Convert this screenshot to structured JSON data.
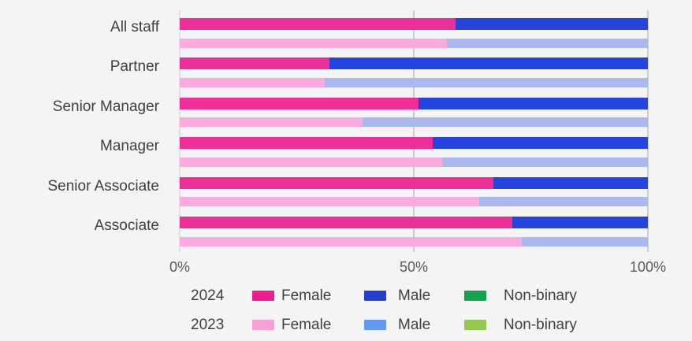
{
  "chart_data": {
    "type": "bar",
    "orientation": "horizontal",
    "stacked": true,
    "unit": "percent",
    "title": "",
    "background": "#F5F4F5",
    "categories": [
      "All staff",
      "Partner",
      "Senior Manager",
      "Manager",
      "Senior Associate",
      "Associate"
    ],
    "series": [
      {
        "year": "2024",
        "name": "Female",
        "color": "#EF2F99",
        "values": [
          59,
          32,
          51,
          54,
          67,
          71
        ]
      },
      {
        "year": "2024",
        "name": "Male",
        "color": "#2444DF",
        "values": [
          41,
          68,
          49,
          46,
          33,
          29
        ]
      },
      {
        "year": "2024",
        "name": "Non-binary",
        "color": "#12A44B",
        "values": [
          0,
          0,
          0,
          0,
          0,
          0
        ]
      },
      {
        "year": "2023",
        "name": "Female",
        "color": "#FAAADC",
        "values": [
          57,
          31,
          39,
          56,
          64,
          73
        ]
      },
      {
        "year": "2023",
        "name": "Male",
        "color": "#A9B8EE",
        "values": [
          43,
          69,
          61,
          44,
          36,
          27
        ]
      },
      {
        "year": "2023",
        "name": "Non-binary",
        "color": "#B9DC8C",
        "values": [
          0,
          0,
          0,
          0,
          0,
          0
        ]
      }
    ],
    "xlim": [
      0,
      100
    ],
    "x_ticks": [
      {
        "label": "0%",
        "value": 0
      },
      {
        "label": "50%",
        "value": 50
      },
      {
        "label": "100%",
        "value": 100
      }
    ],
    "grid": "vertical",
    "legend": {
      "position": "bottom",
      "rows": [
        {
          "year": "2024",
          "items": [
            {
              "label": "Female",
              "color": "#EC1E8F"
            },
            {
              "label": "Male",
              "color": "#2140D0"
            },
            {
              "label": "Non-binary",
              "color": "#12A44B"
            }
          ]
        },
        {
          "year": "2023",
          "items": [
            {
              "label": "Female",
              "color": "#F89FD7"
            },
            {
              "label": "Male",
              "color": "#619AF0"
            },
            {
              "label": "Non-binary",
              "color": "#93C94E"
            }
          ]
        }
      ]
    }
  }
}
